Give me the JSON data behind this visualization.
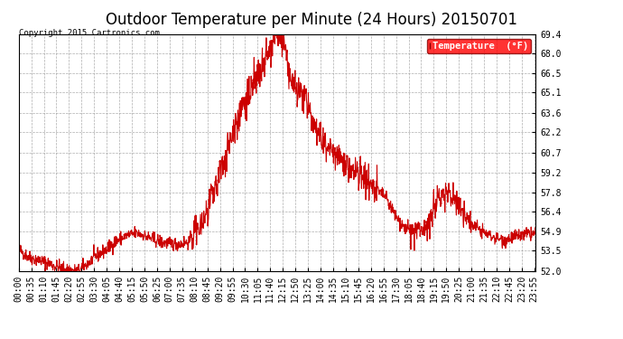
{
  "title": "Outdoor Temperature per Minute (24 Hours) 20150701",
  "copyright_text": "Copyright 2015 Cartronics.com",
  "legend_label": "Temperature  (°F)",
  "line_color": "#cc0000",
  "background_color": "#ffffff",
  "grid_color": "#999999",
  "ylim": [
    52.0,
    69.4
  ],
  "ytick_values": [
    52.0,
    53.5,
    54.9,
    56.4,
    57.8,
    59.2,
    60.7,
    62.2,
    63.6,
    65.1,
    66.5,
    68.0,
    69.4
  ],
  "ytick_labels": [
    "52.0",
    "53.5",
    "54.9",
    "56.4",
    "57.8",
    "59.2",
    "60.7",
    "62.2",
    "63.6",
    "65.1",
    "66.5",
    "68.0",
    "69.4"
  ],
  "xtick_labels": [
    "00:00",
    "00:35",
    "01:10",
    "01:45",
    "02:20",
    "02:55",
    "03:30",
    "04:05",
    "04:40",
    "05:15",
    "05:50",
    "06:25",
    "07:00",
    "07:35",
    "08:10",
    "08:45",
    "09:20",
    "09:55",
    "10:30",
    "11:05",
    "11:40",
    "12:15",
    "12:50",
    "13:25",
    "14:00",
    "14:35",
    "15:10",
    "15:45",
    "16:20",
    "16:55",
    "17:30",
    "18:05",
    "18:40",
    "19:15",
    "19:50",
    "20:25",
    "21:00",
    "21:35",
    "22:10",
    "22:45",
    "23:20",
    "23:55"
  ],
  "title_fontsize": 12,
  "axis_fontsize": 7,
  "copyright_fontsize": 6.5,
  "legend_fontsize": 7.5,
  "line_width": 0.8,
  "n_points": 1440,
  "curve_segments": [
    [
      0,
      30,
      53.6,
      53.0
    ],
    [
      30,
      60,
      53.0,
      52.8
    ],
    [
      60,
      90,
      52.8,
      52.5
    ],
    [
      90,
      120,
      52.5,
      52.2
    ],
    [
      120,
      150,
      52.2,
      52.05
    ],
    [
      150,
      165,
      52.05,
      52.0
    ],
    [
      165,
      180,
      52.0,
      52.3
    ],
    [
      180,
      210,
      52.3,
      53.0
    ],
    [
      210,
      240,
      53.0,
      53.5
    ],
    [
      240,
      270,
      53.5,
      54.2
    ],
    [
      270,
      300,
      54.2,
      54.6
    ],
    [
      300,
      330,
      54.6,
      54.8
    ],
    [
      330,
      360,
      54.8,
      54.5
    ],
    [
      360,
      390,
      54.5,
      54.2
    ],
    [
      390,
      420,
      54.2,
      54.0
    ],
    [
      420,
      450,
      54.0,
      54.0
    ],
    [
      450,
      480,
      54.0,
      54.2
    ],
    [
      480,
      510,
      54.2,
      55.5
    ],
    [
      510,
      540,
      55.5,
      57.5
    ],
    [
      540,
      570,
      57.5,
      60.0
    ],
    [
      570,
      600,
      60.0,
      62.5
    ],
    [
      600,
      630,
      62.5,
      64.5
    ],
    [
      630,
      660,
      64.5,
      66.0
    ],
    [
      660,
      690,
      66.0,
      67.5
    ],
    [
      690,
      710,
      67.5,
      69.0
    ],
    [
      710,
      720,
      69.0,
      69.4
    ],
    [
      720,
      740,
      69.4,
      68.5
    ],
    [
      740,
      760,
      68.5,
      65.5
    ],
    [
      760,
      790,
      65.5,
      65.0
    ],
    [
      790,
      820,
      65.0,
      63.0
    ],
    [
      820,
      850,
      63.0,
      61.5
    ],
    [
      850,
      880,
      61.5,
      60.5
    ],
    [
      880,
      920,
      60.5,
      59.5
    ],
    [
      920,
      960,
      59.5,
      59.0
    ],
    [
      960,
      990,
      59.0,
      58.0
    ],
    [
      990,
      1020,
      58.0,
      57.5
    ],
    [
      1020,
      1050,
      57.5,
      56.0
    ],
    [
      1050,
      1080,
      56.0,
      55.0
    ],
    [
      1080,
      1110,
      55.0,
      54.8
    ],
    [
      1110,
      1140,
      54.8,
      55.5
    ],
    [
      1140,
      1170,
      55.5,
      57.5
    ],
    [
      1170,
      1200,
      57.5,
      57.8
    ],
    [
      1200,
      1230,
      57.8,
      56.5
    ],
    [
      1230,
      1260,
      56.5,
      55.5
    ],
    [
      1260,
      1290,
      55.5,
      54.9
    ],
    [
      1290,
      1320,
      54.9,
      54.5
    ],
    [
      1320,
      1350,
      54.5,
      54.3
    ],
    [
      1350,
      1380,
      54.3,
      54.5
    ],
    [
      1380,
      1440,
      54.5,
      54.8
    ]
  ]
}
